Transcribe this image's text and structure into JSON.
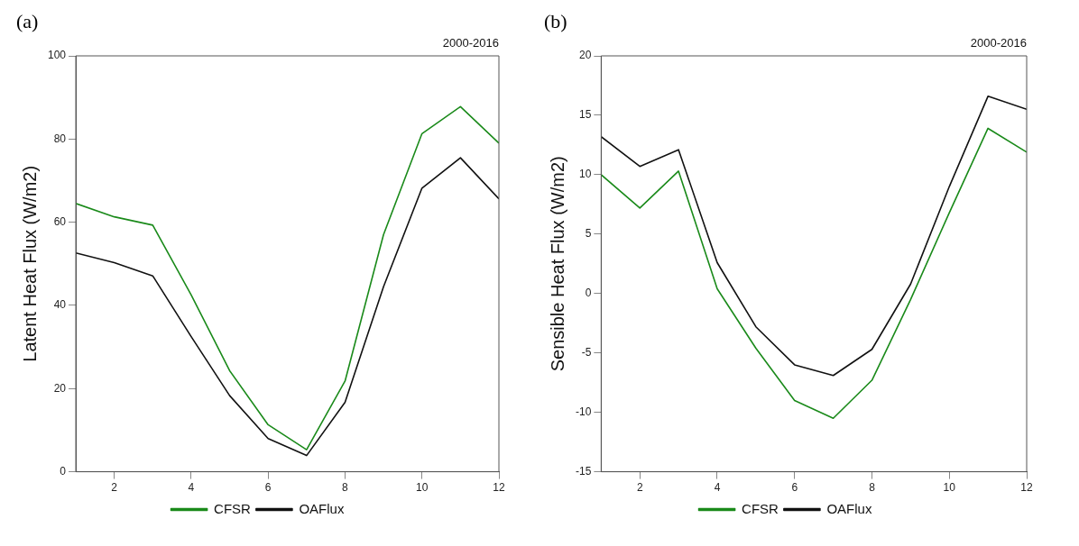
{
  "chart_data": [
    {
      "type": "line",
      "title": "(a)",
      "subtitle": "2000-2016",
      "ylabel": "Latent Heat Flux (W/m2)",
      "x": [
        1,
        2,
        3,
        4,
        5,
        6,
        7,
        8,
        9,
        10,
        11,
        12
      ],
      "series": [
        {
          "name": "CFSR",
          "color": "#1a8a1a",
          "values": [
            64.5,
            61.3,
            59.3,
            42.5,
            24.3,
            11.3,
            5.3,
            21.8,
            57,
            81.3,
            87.8,
            79
          ]
        },
        {
          "name": "OAFlux",
          "color": "#111111",
          "values": [
            52.6,
            50.3,
            47.1,
            32.5,
            18.3,
            8,
            3.9,
            16.7,
            44.5,
            68.2,
            75.5,
            65.6
          ]
        }
      ],
      "xlim": [
        1,
        12
      ],
      "xticks": [
        2,
        4,
        6,
        8,
        10,
        12
      ],
      "ylim": [
        0,
        100
      ],
      "yticks": [
        0,
        20,
        40,
        60,
        80,
        100
      ],
      "grid": false,
      "legend": "bottom",
      "marker": "none",
      "line_style": "solid"
    },
    {
      "type": "line",
      "title": "(b)",
      "subtitle": "2000-2016",
      "ylabel": "Sensible Heat Flux (W/m2)",
      "x": [
        1,
        2,
        3,
        4,
        5,
        6,
        7,
        8,
        9,
        10,
        11,
        12
      ],
      "series": [
        {
          "name": "CFSR",
          "color": "#1a8a1a",
          "values": [
            10,
            7.2,
            10.3,
            0.4,
            -4.6,
            -9,
            -10.5,
            -7.3,
            -0.5,
            6.8,
            13.9,
            11.9
          ]
        },
        {
          "name": "OAFlux",
          "color": "#111111",
          "values": [
            13.2,
            10.7,
            12.1,
            2.6,
            -2.8,
            -6,
            -6.9,
            -4.7,
            0.8,
            9,
            16.6,
            15.5
          ]
        }
      ],
      "xlim": [
        1,
        12
      ],
      "xticks": [
        2,
        4,
        6,
        8,
        10,
        12
      ],
      "ylim": [
        -15,
        20
      ],
      "yticks": [
        -15,
        -10,
        -5,
        0,
        5,
        10,
        15,
        20
      ],
      "grid": false,
      "legend": "bottom",
      "marker": "none",
      "line_style": "solid"
    }
  ]
}
